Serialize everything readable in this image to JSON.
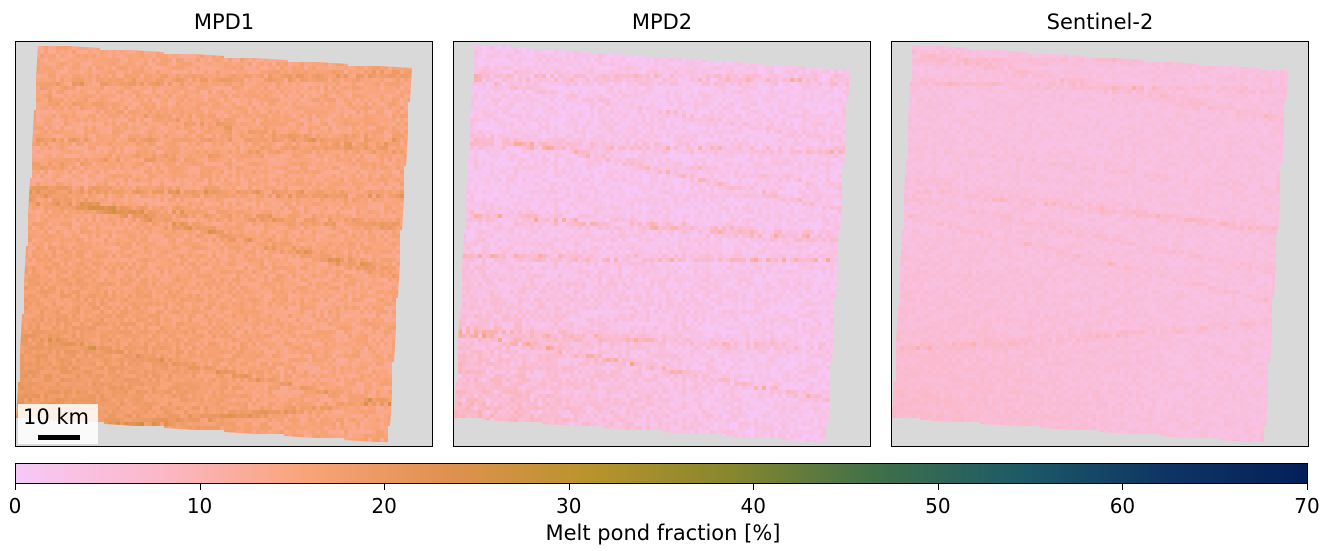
{
  "chart_data": {
    "type": "heatmap",
    "panels": [
      {
        "title": "MPD1",
        "mean_fraction_pct": 15,
        "variability_pct": 7
      },
      {
        "title": "MPD2",
        "mean_fraction_pct": 2,
        "variability_pct": 8
      },
      {
        "title": "Sentinel-2",
        "mean_fraction_pct": 4,
        "variability_pct": 4
      }
    ],
    "scalebar": {
      "label": "10 km"
    },
    "colorbar": {
      "label": "Melt pond fraction [%]",
      "range": [
        0,
        70
      ],
      "ticks": [
        0,
        10,
        20,
        30,
        40,
        50,
        60,
        70
      ],
      "colors": [
        "#f7c8f7",
        "#fbb8c8",
        "#f9a47a",
        "#e09150",
        "#b9932b",
        "#86862e",
        "#3f704a",
        "#1d5a66",
        "#0f3564",
        "#041f5a"
      ]
    }
  }
}
